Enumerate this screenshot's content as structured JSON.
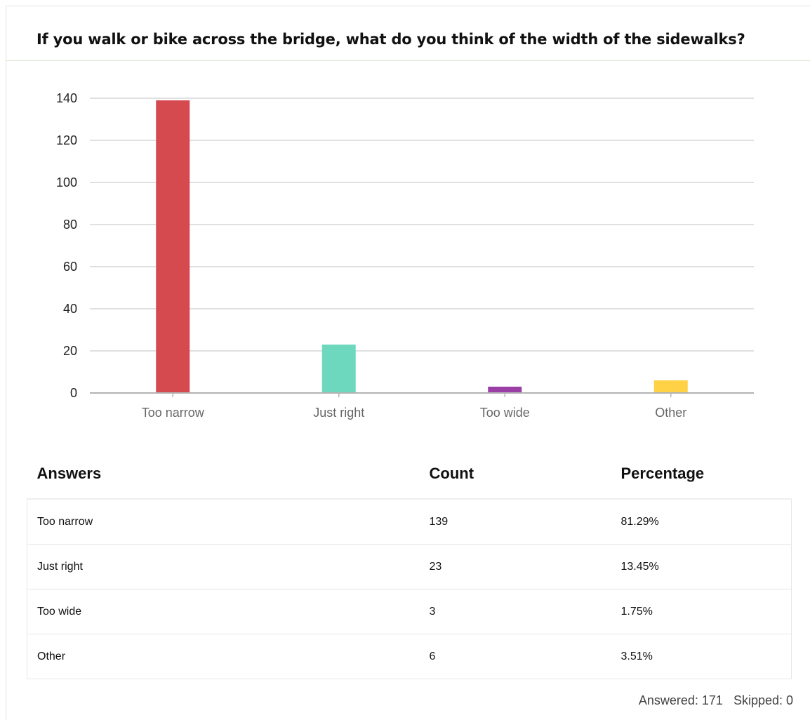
{
  "question": "If you walk or bike across the bridge, what do you think of the width of the sidewalks?",
  "colors": {
    "too_narrow": "#d44a4f",
    "just_right": "#6ed8bf",
    "too_wide": "#9b3fa6",
    "other": "#ffd246",
    "gridline": "#e0e0e0",
    "axis": "#b3b3b3"
  },
  "chart_data": {
    "type": "bar",
    "categories": [
      "Too narrow",
      "Just right",
      "Too wide",
      "Other"
    ],
    "values": [
      139,
      23,
      3,
      6
    ],
    "colors": [
      "#d44a4f",
      "#6ed8bf",
      "#9b3fa6",
      "#ffd246"
    ],
    "title": "",
    "xlabel": "",
    "ylabel": "",
    "ylim": [
      0,
      140
    ],
    "yticks": [
      0,
      20,
      40,
      60,
      80,
      100,
      120,
      140
    ],
    "grid": true,
    "legend": "none"
  },
  "table": {
    "headers": [
      "Answers",
      "Count",
      "Percentage"
    ],
    "rows": [
      [
        "Too narrow",
        "139",
        "81.29%"
      ],
      [
        "Just right",
        "23",
        "13.45%"
      ],
      [
        "Too wide",
        "3",
        "1.75%"
      ],
      [
        "Other",
        "6",
        "3.51%"
      ]
    ]
  },
  "summary": {
    "answered": "Answered: 171",
    "skipped": "Skipped: 0"
  }
}
